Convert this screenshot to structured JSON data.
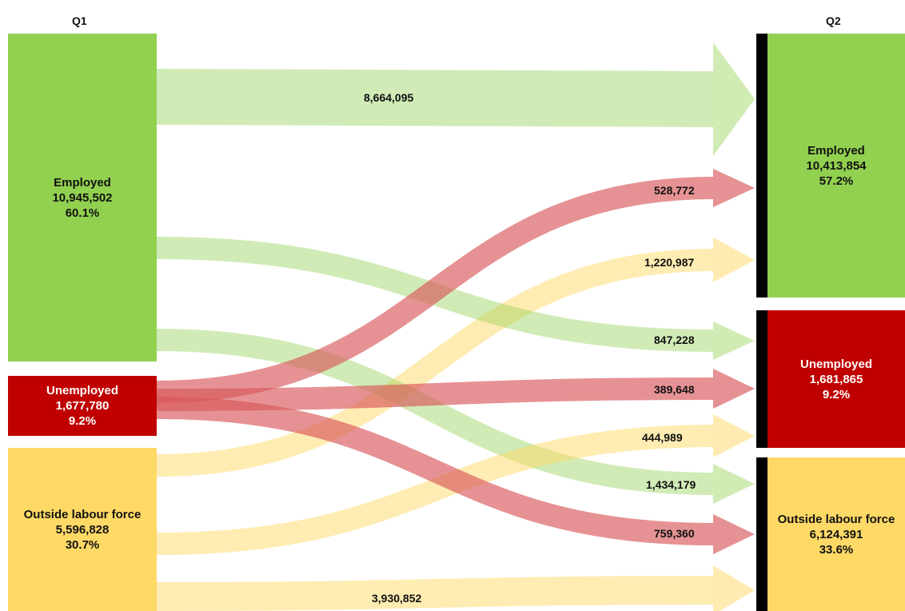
{
  "columns": {
    "left": "Q1",
    "right": "Q2"
  },
  "colors": {
    "employed": "#92d050",
    "unemployed": "#c00000",
    "outside": "#ffd966",
    "employed_flow": "#92d050",
    "unemployed_flow": "#d9575a",
    "outside_flow": "#ffd966",
    "separator": "#000000"
  },
  "q1": {
    "employed": {
      "label": "Employed",
      "value": "10,945,502",
      "share": "60.1%"
    },
    "unemployed": {
      "label": "Unemployed",
      "value": "1,677,780",
      "share": "9.2%"
    },
    "outside": {
      "label": "Outside labour force",
      "value": "5,596,828",
      "share": "30.7%"
    }
  },
  "q2": {
    "employed": {
      "label": "Employed",
      "value": "10,413,854",
      "share": "57.2%"
    },
    "unemployed": {
      "label": "Unemployed",
      "value": "1,681,865",
      "share": "9.2%"
    },
    "outside": {
      "label": "Outside labour force",
      "value": "6,124,391",
      "share": "33.6%"
    }
  },
  "flows": [
    {
      "id": "emp-emp",
      "from": "employed",
      "to": "employed",
      "value": "8,664,095"
    },
    {
      "id": "unemp-emp",
      "from": "unemployed",
      "to": "employed",
      "value": "528,772"
    },
    {
      "id": "out-emp",
      "from": "outside",
      "to": "employed",
      "value": "1,220,987"
    },
    {
      "id": "emp-unemp",
      "from": "employed",
      "to": "unemployed",
      "value": "847,228"
    },
    {
      "id": "unemp-unemp",
      "from": "unemployed",
      "to": "unemployed",
      "value": "389,648"
    },
    {
      "id": "out-unemp",
      "from": "outside",
      "to": "unemployed",
      "value": "444,989"
    },
    {
      "id": "emp-out",
      "from": "employed",
      "to": "outside",
      "value": "1,434,179"
    },
    {
      "id": "unemp-out",
      "from": "unemployed",
      "to": "outside",
      "value": "759,360"
    },
    {
      "id": "out-out",
      "from": "outside",
      "to": "outside",
      "value": "3,930,852"
    }
  ]
}
